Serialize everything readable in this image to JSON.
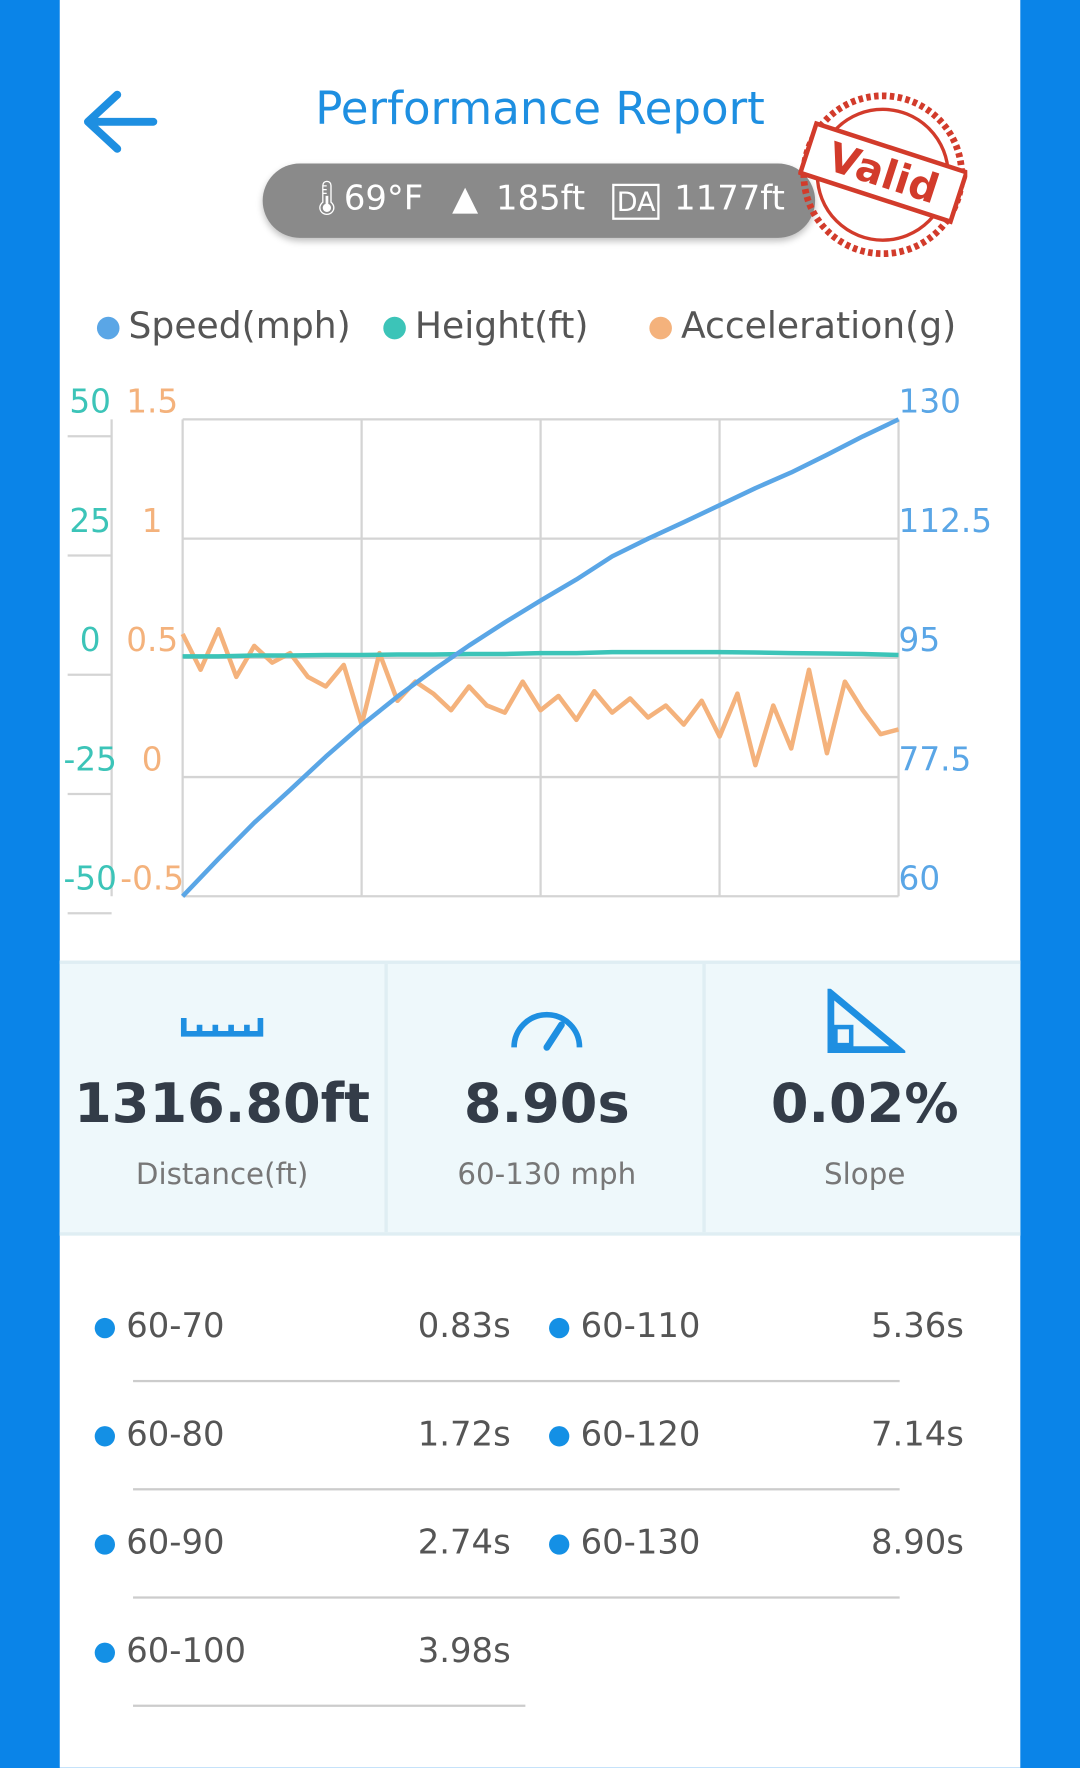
{
  "header": {
    "title": "Performance Report",
    "conditions": {
      "temperature": "69°F",
      "elevation": "185ft",
      "da_badge": "DA",
      "density_altitude": "1177ft"
    },
    "stamp": "Valid"
  },
  "chart_data": {
    "type": "line",
    "series": [
      {
        "name": "Speed(mph)",
        "color": "#5aa6e6",
        "axis": "y2",
        "values": [
          60,
          65.5,
          70.8,
          75.6,
          80.5,
          85.1,
          89.3,
          93.2,
          96.8,
          100.2,
          103.4,
          106.5,
          109.9,
          112.5,
          114.9,
          117.4,
          119.9,
          122.2,
          124.8,
          127.5,
          130
        ]
      },
      {
        "name": "Height(ft)",
        "color": "#3cc4b8",
        "axis": "y",
        "values": [
          0.3,
          0.3,
          0.5,
          0.5,
          0.6,
          0.6,
          0.7,
          0.7,
          0.8,
          0.8,
          1,
          1,
          1.2,
          1.2,
          1.2,
          1.2,
          1.1,
          1,
          0.9,
          0.8,
          0.6
        ]
      },
      {
        "name": "Acceleration(g)",
        "color": "#f4b27c",
        "axis": "y3",
        "values": [
          0.6,
          0.45,
          0.62,
          0.42,
          0.55,
          0.48,
          0.52,
          0.42,
          0.38,
          0.47,
          0.22,
          0.52,
          0.32,
          0.4,
          0.35,
          0.28,
          0.38,
          0.3,
          0.27,
          0.4,
          0.28,
          0.34,
          0.24,
          0.36,
          0.27,
          0.33,
          0.25,
          0.3,
          0.22,
          0.32,
          0.17,
          0.35,
          0.05,
          0.3,
          0.12,
          0.45,
          0.1,
          0.4,
          0.28,
          0.18,
          0.2
        ]
      }
    ],
    "ylim": [
      -50,
      50
    ],
    "yticks": [
      -50,
      -25,
      0,
      25,
      50
    ],
    "y3lim": [
      -0.5,
      1.5
    ],
    "y3ticks": [
      -0.5,
      0,
      0.5,
      1,
      1.5
    ],
    "y2lim": [
      60,
      130
    ],
    "y2ticks": [
      60,
      77.5,
      95,
      112.5,
      130
    ],
    "grid": true
  },
  "summary": [
    {
      "value": "1316.80ft",
      "label": "Distance(ft)"
    },
    {
      "value": "8.90s",
      "label": "60-130 mph"
    },
    {
      "value": "0.02%",
      "label": "Slope"
    }
  ],
  "splits": [
    {
      "range": "60-70",
      "time": "0.83s"
    },
    {
      "range": "60-110",
      "time": "5.36s"
    },
    {
      "range": "60-80",
      "time": "1.72s"
    },
    {
      "range": "60-120",
      "time": "7.14s"
    },
    {
      "range": "60-90",
      "time": "2.74s"
    },
    {
      "range": "60-130",
      "time": "8.90s"
    },
    {
      "range": "60-100",
      "time": "3.98s"
    }
  ]
}
